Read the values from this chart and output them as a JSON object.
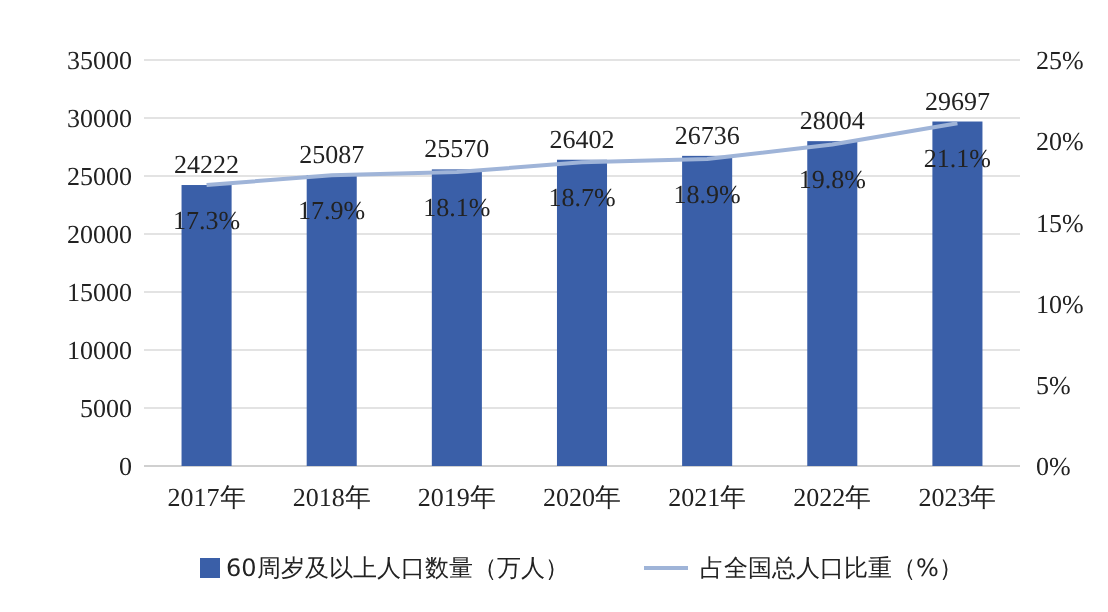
{
  "chart_data": {
    "type": "bar",
    "categories": [
      "2017年",
      "2018年",
      "2019年",
      "2020年",
      "2021年",
      "2022年",
      "2023年"
    ],
    "series": [
      {
        "name": "60周岁及以上人口数量（万人）",
        "color": "#3a5fa8",
        "values": [
          24222,
          25087,
          25570,
          26402,
          26736,
          28004,
          29697
        ]
      },
      {
        "name": "占全国总人口比重（%）",
        "type": "line",
        "axis": "y2",
        "color": "#9fb4d8",
        "values": [
          17.3,
          17.9,
          18.1,
          18.7,
          18.9,
          19.8,
          21.1
        ],
        "value_labels": [
          "17.3%",
          "17.9%",
          "18.1%",
          "18.7%",
          "18.9%",
          "19.8%",
          "21.1%"
        ]
      }
    ],
    "data_labels": true,
    "ylim": [
      0,
      35000
    ],
    "yticks": [
      0,
      5000,
      10000,
      15000,
      20000,
      25000,
      30000,
      35000
    ],
    "y2lim": [
      0,
      25
    ],
    "y2ticks": [
      {
        "value": 0,
        "label": "0%"
      },
      {
        "value": 5,
        "label": "5%"
      },
      {
        "value": 10,
        "label": "10%"
      },
      {
        "value": 15,
        "label": "15%"
      },
      {
        "value": 20,
        "label": "20%"
      },
      {
        "value": 25,
        "label": "25%"
      }
    ],
    "grid": "y",
    "legend": "bottom",
    "marker": "none",
    "line_style": "solid"
  }
}
